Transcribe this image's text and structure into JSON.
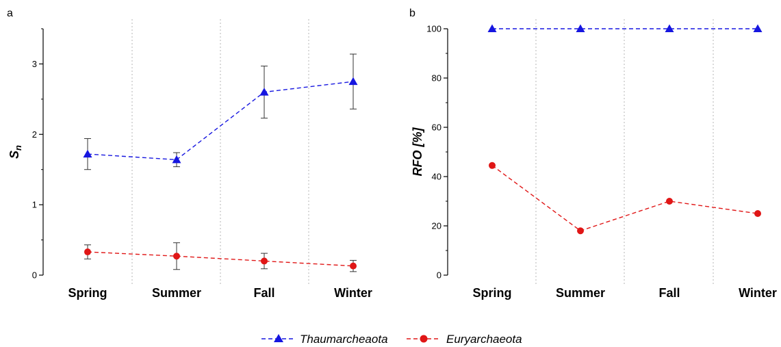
{
  "chart_data": [
    {
      "panel": "a",
      "type": "line",
      "ylabel": "S",
      "ylabel_sub": "n",
      "ylim": [
        0,
        3.5
      ],
      "yticks": [
        0,
        1,
        2,
        3
      ],
      "grid": "vertical dotted separators between categories",
      "categories": [
        "Spring",
        "Summer",
        "Fall",
        "Winter"
      ],
      "series": [
        {
          "name": "Thaumarcheaota",
          "values": [
            1.72,
            1.64,
            2.6,
            2.75
          ],
          "error": [
            0.22,
            0.1,
            0.37,
            0.39
          ],
          "color": "#1616e0",
          "marker": "triangle"
        },
        {
          "name": "Euryarchaeota",
          "values": [
            0.33,
            0.27,
            0.2,
            0.13
          ],
          "error": [
            0.1,
            0.19,
            0.11,
            0.08
          ],
          "color": "#e01616",
          "marker": "circle"
        }
      ]
    },
    {
      "panel": "b",
      "type": "line",
      "ylabel": "RFO [%]",
      "ylim": [
        0,
        100
      ],
      "yticks": [
        0,
        20,
        40,
        60,
        80,
        100
      ],
      "grid": "vertical dotted separators between categories",
      "categories": [
        "Spring",
        "Summer",
        "Fall",
        "Winter"
      ],
      "series": [
        {
          "name": "Thaumarcheaota",
          "values": [
            100,
            100,
            100,
            100
          ],
          "color": "#1616e0",
          "marker": "triangle"
        },
        {
          "name": "Euryarchaeota",
          "values": [
            44.5,
            18,
            30,
            25
          ],
          "color": "#e01616",
          "marker": "circle"
        }
      ]
    }
  ],
  "legend": {
    "placement": "bottom-center",
    "items": [
      {
        "label": "Thaumarcheaota",
        "color": "#1616e0",
        "marker": "triangle"
      },
      {
        "label": "Euryarchaeota",
        "color": "#e01616",
        "marker": "circle"
      }
    ]
  }
}
